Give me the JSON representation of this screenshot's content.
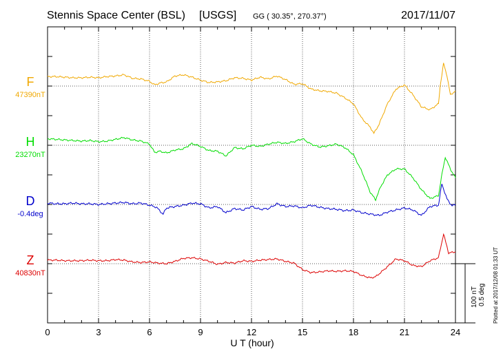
{
  "header": {
    "title": "Stennis Space Center (BSL)",
    "network": "[USGS]",
    "coords": "GG ( 30.35°, 270.37°)",
    "date": "2017/11/07"
  },
  "footer": {
    "plotted_note": "Plotted at 2017/12/08 01:33 UT"
  },
  "colors": {
    "F": "#f0a800",
    "H": "#00dd00",
    "D": "#0000cc",
    "Z": "#dd0000",
    "frame": "#000000"
  },
  "chart_data": {
    "type": "line",
    "xlabel": "U T (hour)",
    "xlim": [
      0,
      24
    ],
    "xticks": [
      "0",
      "3",
      "6",
      "9",
      "12",
      "15",
      "18",
      "21",
      "24"
    ],
    "scale_bar": {
      "nt": "100 nT",
      "deg": "0.5 deg"
    },
    "series": [
      {
        "name": "F",
        "baseline": "47390nT",
        "base": 47390,
        "unit": "nT",
        "x": [
          0,
          0.5,
          1,
          1.5,
          2,
          2.5,
          3,
          3.5,
          4,
          4.5,
          5,
          5.5,
          6,
          6.3,
          6.6,
          7,
          7.5,
          8,
          8.5,
          9,
          9.5,
          10,
          10.5,
          11,
          11.5,
          12,
          12.5,
          13,
          13.5,
          14,
          14.5,
          15,
          15.5,
          16,
          16.5,
          17,
          17.5,
          18,
          18.5,
          19,
          19.2,
          19.5,
          20,
          20.5,
          21,
          21.5,
          22,
          22.5,
          23,
          23.1,
          23.3,
          23.5,
          23.7,
          24
        ],
        "values": [
          16,
          16,
          15,
          14,
          14,
          15,
          14,
          16,
          17,
          19,
          13,
          12,
          8,
          2,
          5,
          7,
          17,
          19,
          15,
          10,
          6,
          7,
          9,
          14,
          13,
          10,
          15,
          12,
          17,
          11,
          3,
          4,
          -5,
          -8,
          -9,
          -12,
          -20,
          -30,
          -55,
          -70,
          -80,
          -65,
          -30,
          -5,
          2,
          -15,
          -35,
          -40,
          -30,
          0,
          38,
          18,
          -15,
          -8
        ]
      },
      {
        "name": "H",
        "baseline": "23270nT",
        "base": 23270,
        "unit": "nT",
        "x": [
          0,
          0.5,
          1,
          1.5,
          2,
          2.5,
          3,
          3.5,
          4,
          4.5,
          5,
          5.5,
          6,
          6.3,
          6.6,
          7,
          7.5,
          8,
          8.5,
          9,
          9.5,
          10,
          10.5,
          11,
          11.5,
          12,
          12.5,
          13,
          13.5,
          14,
          14.5,
          15,
          15.5,
          16,
          16.5,
          17,
          17.5,
          18,
          18.5,
          19,
          19.3,
          19.6,
          20,
          20.5,
          21,
          21.5,
          22,
          22.5,
          23,
          23.2,
          23.4,
          23.7,
          24
        ],
        "values": [
          11,
          10,
          9,
          8,
          7,
          8,
          6,
          7,
          10,
          13,
          9,
          7,
          2,
          -12,
          -10,
          -13,
          -8,
          -6,
          3,
          -2,
          -9,
          -10,
          -18,
          -4,
          -6,
          0,
          -2,
          2,
          5,
          3,
          6,
          11,
          2,
          -3,
          -1,
          2,
          -4,
          -16,
          -45,
          -80,
          -92,
          -70,
          -50,
          -40,
          -40,
          -55,
          -75,
          -90,
          -85,
          -50,
          -20,
          -40,
          -55
        ]
      },
      {
        "name": "D",
        "baseline": "-0.4deg",
        "base": -0.4,
        "unit": "deg",
        "x": [
          0,
          0.5,
          1,
          1.5,
          2,
          2.5,
          3,
          3.5,
          4,
          4.5,
          5,
          5.5,
          6,
          6.4,
          6.8,
          7,
          7.5,
          8,
          8.5,
          9,
          9.5,
          10,
          10.5,
          11,
          11.5,
          12,
          12.5,
          13,
          13.5,
          14,
          14.5,
          15,
          15.5,
          16,
          16.5,
          17,
          17.5,
          18,
          18.5,
          19,
          19.5,
          20,
          20.5,
          21,
          21.5,
          22,
          22.5,
          23,
          23.2,
          23.5,
          23.8,
          24
        ],
        "values": [
          2,
          1,
          1,
          2,
          1,
          1,
          0,
          1,
          2,
          3,
          1,
          2,
          -1,
          -4,
          -14,
          -5,
          -3,
          -1,
          2,
          1,
          -5,
          -3,
          -12,
          -6,
          -8,
          -3,
          -7,
          -6,
          1,
          -3,
          -2,
          -5,
          -1,
          -4,
          -6,
          -7,
          -9,
          -8,
          -12,
          -14,
          -16,
          -11,
          -8,
          -5,
          -8,
          -16,
          -3,
          -1,
          30,
          8,
          -2,
          0
        ]
      },
      {
        "name": "Z",
        "baseline": "40830nT",
        "base": 40830,
        "unit": "nT",
        "x": [
          0,
          0.5,
          1,
          1.5,
          2,
          2.5,
          3,
          3.5,
          4,
          4.5,
          5,
          5.5,
          6,
          6.5,
          7,
          7.5,
          8,
          8.5,
          9,
          9.5,
          10,
          10.5,
          11,
          11.5,
          12,
          12.5,
          13,
          13.5,
          14,
          14.5,
          15,
          15.5,
          16,
          16.5,
          17,
          17.5,
          18,
          18.5,
          19,
          19.3,
          19.6,
          20,
          20.5,
          21,
          21.5,
          22,
          22.5,
          23,
          23.3,
          23.6,
          24
        ],
        "values": [
          6,
          6,
          5,
          5,
          5,
          6,
          5,
          5,
          7,
          6,
          3,
          2,
          3,
          1,
          0,
          4,
          9,
          10,
          8,
          4,
          -1,
          2,
          1,
          5,
          4,
          6,
          7,
          8,
          4,
          1,
          -10,
          -15,
          -14,
          -12,
          -13,
          -12,
          -13,
          -20,
          -24,
          -22,
          -15,
          -5,
          8,
          5,
          -3,
          -5,
          5,
          10,
          50,
          18,
          20
        ]
      }
    ],
    "panel_labels": [
      "F",
      "H",
      "D",
      "Z"
    ],
    "grid": true
  }
}
